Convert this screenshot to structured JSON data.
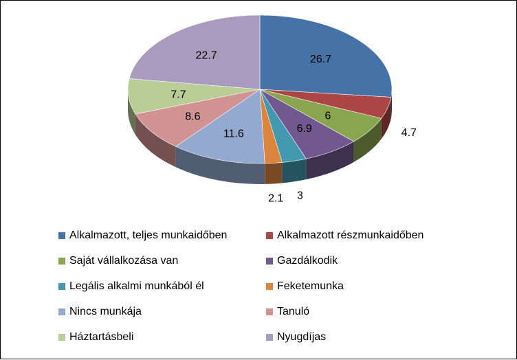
{
  "chart_data": {
    "type": "pie",
    "style": "3d",
    "categories": [
      "Alkalmazott, teljes munkaidőben",
      "Alkalmazott részmunkaidőben",
      "Saját vállalkozása van",
      "Gazdálkodik",
      "Legális alkalmi munkából él",
      "Feketemunka",
      "Nincs munkája",
      "Tanuló",
      "Háztartásbeli",
      "Nyugdíjas"
    ],
    "values": [
      26.7,
      4.7,
      6,
      6.9,
      3,
      2.1,
      11.6,
      8.6,
      7.7,
      22.7
    ],
    "data_labels": [
      "26.7",
      "4.7",
      "6",
      "6.9",
      "3",
      "2.1",
      "11.6",
      "8.6",
      "7.7",
      "22.7"
    ],
    "colors": [
      "#4572A7",
      "#AA4643",
      "#89A54E",
      "#71588F",
      "#4198AF",
      "#DB843D",
      "#93A9CF",
      "#D19392",
      "#B9CD96",
      "#A99BBD"
    ],
    "legend_position": "bottom"
  }
}
